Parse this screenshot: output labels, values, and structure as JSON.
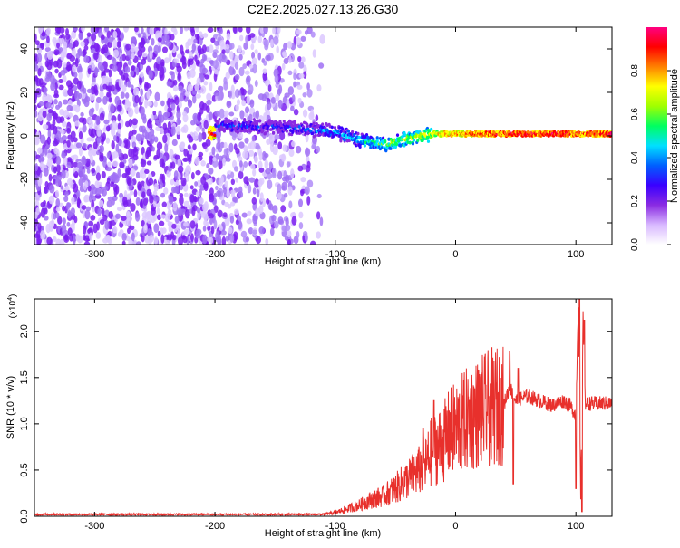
{
  "title": "C2E2.2025.027.13.26.G30",
  "chart_data": [
    {
      "type": "heatmap",
      "xlabel": "Height of straight line (km)",
      "ylabel": "Frequency (Hz)",
      "xlim": [
        -350,
        130
      ],
      "ylim": [
        -50,
        50
      ],
      "x_ticks": [
        -300,
        -200,
        -100,
        0,
        100
      ],
      "y_ticks": [
        -40,
        -20,
        0,
        20,
        40
      ],
      "colorbar": {
        "label": "Normalized spectral amplitude",
        "range": [
          0,
          1
        ],
        "ticks": [
          "0.0",
          "0.2",
          "0.4",
          "0.6",
          "0.8"
        ],
        "colors": [
          "#ffffff",
          "#d8b8ff",
          "#8a2be2",
          "#3a00ff",
          "#0060ff",
          "#00e0ff",
          "#00ff60",
          "#a0ff00",
          "#ffff00",
          "#ff8000",
          "#ff0000",
          "#ff0080"
        ]
      },
      "ridge": {
        "description_points_x": [
          -200,
          -150,
          -120,
          -100,
          -80,
          -60,
          -45,
          -30,
          -20,
          -10,
          0,
          30,
          60,
          90,
          100,
          130
        ],
        "center_freq_hz": [
          5,
          4,
          3,
          2,
          -2,
          -4,
          -2,
          0,
          1,
          1,
          1,
          1,
          1,
          1,
          1,
          1
        ],
        "amplitude": [
          0.35,
          0.35,
          0.4,
          0.45,
          0.5,
          0.6,
          0.65,
          0.7,
          0.75,
          0.8,
          0.85,
          0.9,
          0.95,
          0.95,
          0.9,
          0.95
        ]
      }
    },
    {
      "type": "line",
      "xlabel": "Height of straight line (km)",
      "ylabel": "SNR (10 * v/v)",
      "y_scale_label": "(x10",
      "y_scale_exp": "4",
      "y_scale_close": ")",
      "xlim": [
        -350,
        130
      ],
      "ylim": [
        0,
        2.35
      ],
      "x_ticks": [
        -300,
        -200,
        -100,
        0,
        100
      ],
      "y_ticks": [
        "0.0",
        "0.5",
        "1.0",
        "1.5",
        "2.0"
      ],
      "color": "#e8302c",
      "series": [
        {
          "name": "SNR",
          "x": [
            -350,
            -200,
            -110,
            -100,
            -90,
            -80,
            -70,
            -60,
            -50,
            -40,
            -30,
            -25,
            -20,
            -15,
            -10,
            -5,
            0,
            10,
            20,
            30,
            40,
            45,
            50,
            60,
            70,
            80,
            90,
            95,
            100,
            102,
            104,
            106,
            108,
            110,
            120,
            130
          ],
          "y": [
            0.02,
            0.02,
            0.02,
            0.04,
            0.08,
            0.12,
            0.18,
            0.22,
            0.3,
            0.4,
            0.5,
            0.55,
            0.7,
            0.75,
            0.8,
            0.9,
            0.95,
            1.05,
            1.12,
            1.18,
            1.2,
            1.4,
            1.25,
            1.3,
            1.25,
            1.2,
            1.25,
            1.2,
            1.1,
            2.3,
            0.2,
            2.15,
            1.2,
            1.22,
            1.22,
            1.22
          ],
          "spikes": [
            {
              "x": -27,
              "y": 0.95
            },
            {
              "x": -18,
              "y": 1.25
            },
            {
              "x": 45,
              "y": 1.78
            },
            {
              "x": 48,
              "y": 0.35
            },
            {
              "x": 52,
              "y": 1.6
            },
            {
              "x": 100,
              "y": 0.3
            },
            {
              "x": 103,
              "y": 2.35
            },
            {
              "x": 105,
              "y": 0.05
            },
            {
              "x": 107,
              "y": 2.12
            }
          ]
        }
      ]
    }
  ]
}
